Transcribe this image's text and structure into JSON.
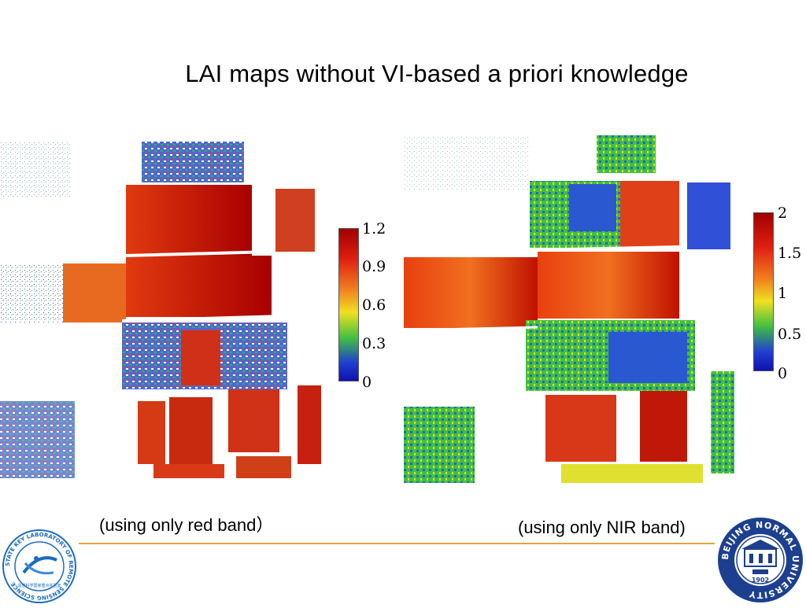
{
  "slide": {
    "title": "LAI maps without VI-based a priori knowledge"
  },
  "left_map": {
    "caption": "(using only red band）",
    "colorbar_ticks": [
      "1.2",
      "0.9",
      "0.6",
      "0.3",
      "0"
    ],
    "colors": {
      "low": "#1030c8",
      "mid": "#f0e020",
      "high": "#a00000"
    }
  },
  "right_map": {
    "caption": "(using only NIR band)",
    "colorbar_ticks": [
      "2",
      "1.5",
      "1",
      "0.5",
      "0"
    ],
    "colors": {
      "low": "#1030c8",
      "mid": "#30d040",
      "high": "#a00000"
    }
  },
  "logos": {
    "left": {
      "ring_text": "STATE KEY LABORATORY OF REMOTE SENSING SCIENCE",
      "inner_text": "遥感科学国家重点实验室",
      "color": "#1a6bc0"
    },
    "right": {
      "ring_text": "BEIJING NORMAL UNIVERSITY",
      "year": "1902",
      "color": "#1d3f8f"
    }
  }
}
